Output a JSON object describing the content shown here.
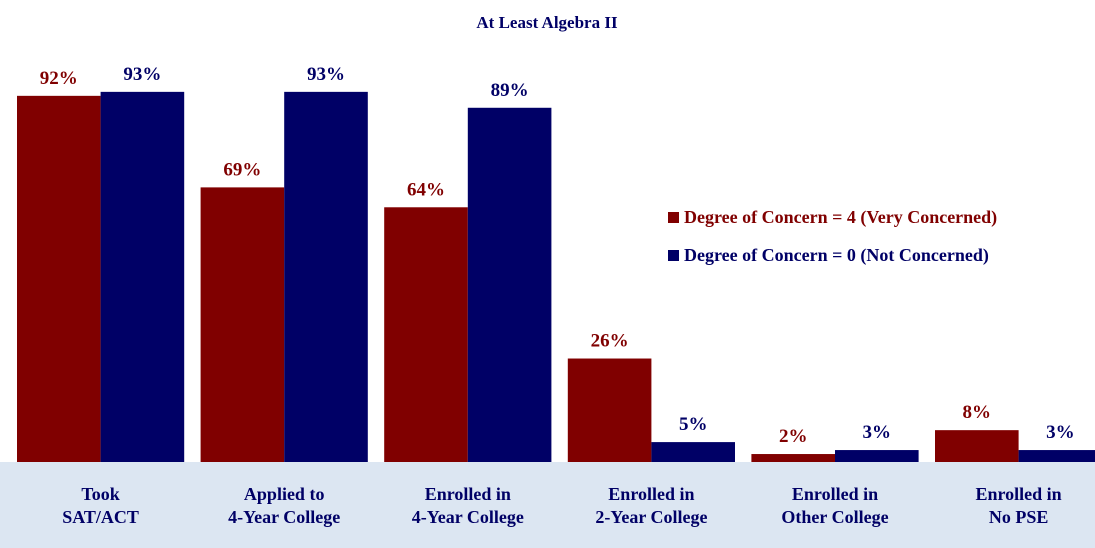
{
  "chart_data": {
    "type": "bar",
    "title": "At Least Algebra II",
    "categories": [
      "Took\nSAT/ACT",
      "Applied to\n4-Year College",
      "Enrolled in\n4-Year College",
      "Enrolled in\n2-Year College",
      "Enrolled in\nOther College",
      "Enrolled in\nNo PSE"
    ],
    "series": [
      {
        "name": "Degree of Concern = 4 (Very Concerned)",
        "color": "#800000",
        "values": [
          92,
          69,
          64,
          26,
          2,
          8
        ],
        "value_labels": [
          "92%",
          "69%",
          "64%",
          "26%",
          "2%",
          "8%"
        ]
      },
      {
        "name": "Degree of Concern = 0 (Not Concerned)",
        "color": "#000066",
        "values": [
          93,
          93,
          89,
          5,
          3,
          3
        ],
        "value_labels": [
          "93%",
          "93%",
          "89%",
          "5%",
          "3%",
          "3%"
        ]
      }
    ],
    "ylim": [
      0,
      100
    ],
    "legend": "right"
  }
}
